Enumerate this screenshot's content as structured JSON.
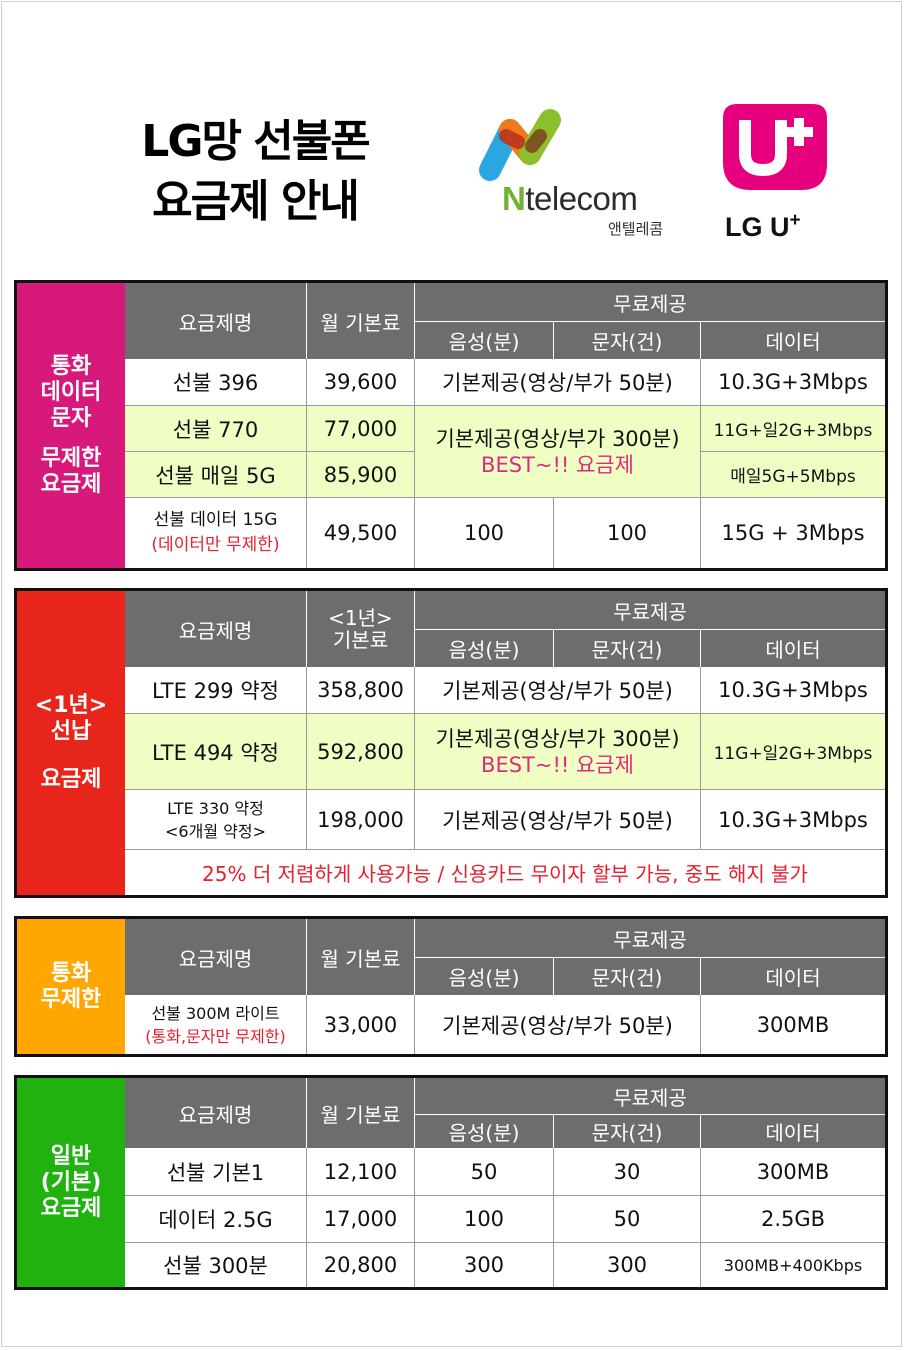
{
  "header": {
    "title_line1": "LG망 선불폰",
    "title_line2": "요금제 안내",
    "ntelecom_n": "N",
    "ntelecom_word": "telecom",
    "ntelecom_korean": "앤텔레콤",
    "lgu_text": "LG U",
    "lgu_plus": "+"
  },
  "colors": {
    "section1": "#d6197a",
    "section2": "#e8251a",
    "section3": "#ffa600",
    "section4": "#22b210",
    "header_gray": "#6d6d6d",
    "highlight_row": "#efffc4",
    "accent_red": "#e5202f",
    "accent_pink": "#e0287f"
  },
  "common_headers": {
    "plan_name": "요금제명",
    "monthly_fee": "월 기본료",
    "free": "무료제공",
    "voice": "음성(분)",
    "sms": "문자(건)",
    "data": "데이터"
  },
  "section1": {
    "side_line1": "통화",
    "side_line2": "데이터",
    "side_line3": "문자",
    "side_line4": "무제한",
    "side_line5": "요금제",
    "row1": {
      "name": "선불 396",
      "fee": "39,600",
      "voice_sms": "기본제공(영상/부가 50분)",
      "data": "10.3G+3Mbps"
    },
    "row2": {
      "name": "선불 770",
      "fee": "77,000",
      "data": "11G+일2G+3Mbps"
    },
    "row3": {
      "name": "선불 매일 5G",
      "fee": "85,900",
      "data": "매일5G+5Mbps"
    },
    "row23_voice_sms": "기본제공(영상/부가 300분)",
    "row23_best": "BEST~!! 요금제",
    "row4": {
      "name": "선불 데이터 15G",
      "note": "(데이터만 무제한)",
      "fee": "49,500",
      "voice": "100",
      "sms": "100",
      "data": "15G + 3Mbps"
    }
  },
  "section2": {
    "side_line1": "<1년>",
    "side_line2": "선납",
    "side_line3": "요금제",
    "fee_header_line1": "<1년>",
    "fee_header_line2": "기본료",
    "row1": {
      "name": "LTE 299 약정",
      "fee": "358,800",
      "voice_sms": "기본제공(영상/부가 50분)",
      "data": "10.3G+3Mbps"
    },
    "row2": {
      "name": "LTE 494 약정",
      "fee": "592,800",
      "voice_sms": "기본제공(영상/부가 300분)",
      "best": "BEST~!! 요금제",
      "data": "11G+일2G+3Mbps"
    },
    "row3": {
      "name_line1": "LTE 330 약정",
      "name_line2": "<6개월 약정>",
      "fee": "198,000",
      "voice_sms": "기본제공(영상/부가 50분)",
      "data": "10.3G+3Mbps"
    },
    "footnote": "25% 더 저렴하게 사용가능 / 신용카드 무이자 할부 가능,  중도 해지 불가"
  },
  "section3": {
    "side_line1": "통화",
    "side_line2": "무제한",
    "row1": {
      "name": "선불 300M 라이트",
      "note": "(통화,문자만 무제한)",
      "fee": "33,000",
      "voice_sms": "기본제공(영상/부가 50분)",
      "data": "300MB"
    }
  },
  "section4": {
    "side_line1": "일반",
    "side_line2": "(기본)",
    "side_line3": "요금제",
    "rows": [
      {
        "name": "선불 기본1",
        "fee": "12,100",
        "voice": "50",
        "sms": "30",
        "data": "300MB"
      },
      {
        "name": "데이터 2.5G",
        "fee": "17,000",
        "voice": "100",
        "sms": "50",
        "data": "2.5GB"
      },
      {
        "name": "선불 300분",
        "fee": "20,800",
        "voice": "300",
        "sms": "300",
        "data": "300MB+400Kbps"
      }
    ]
  }
}
